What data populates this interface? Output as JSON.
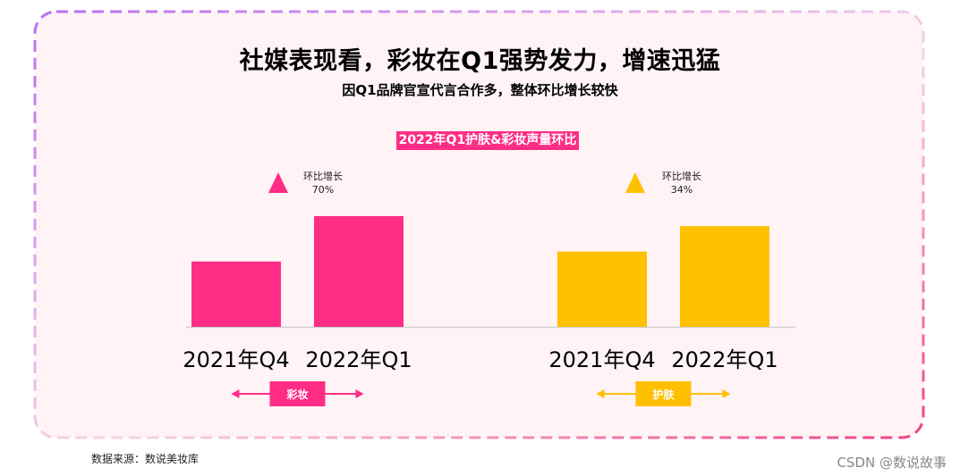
{
  "title": "社媒表现看，彩妆在Q1强势发力，增速迅猛",
  "subtitle": "因Q1品牌官宣代言合作多，整体环比增长较快",
  "source": "数据来源：数说美妆库",
  "watermark": "CSDN @数说故事",
  "colors": {
    "makeup": "#ff2d86",
    "skincare": "#ffc000",
    "frame_start": "#b86ef0",
    "frame_end": "#f0408a",
    "panel_bg": "#fff3f5"
  },
  "chart_data": {
    "type": "bar",
    "title": "2022年Q1护肤&彩妆声量环比",
    "categories": [
      "2021年Q4",
      "2022年Q1"
    ],
    "y_unit": "relative volume (index, 2022年Q1 彩妆 = 100)",
    "ylim": [
      0,
      100
    ],
    "groups": [
      {
        "name": "彩妆",
        "color": "#ff2d86",
        "values": [
          59,
          100
        ],
        "growth_label": "环比增长",
        "growth_value": "70%",
        "marker": "triangle-up"
      },
      {
        "name": "护肤",
        "color": "#ffc000",
        "values": [
          68,
          91
        ],
        "growth_label": "环比增长",
        "growth_value": "34%",
        "marker": "triangle-up"
      }
    ]
  }
}
